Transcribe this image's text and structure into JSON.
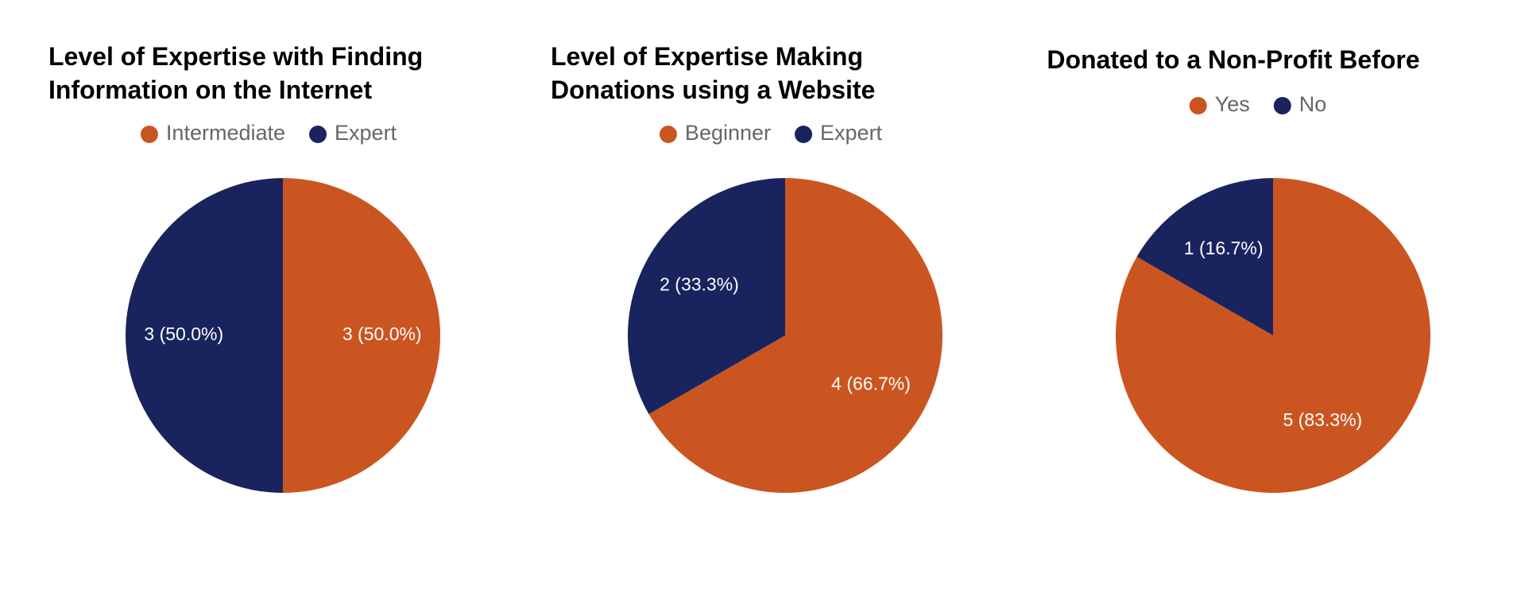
{
  "chart_data": [
    {
      "type": "pie",
      "title": "Level of Expertise with Finding Information on the Internet",
      "categories": [
        "Intermediate",
        "Expert"
      ],
      "values": [
        3,
        3
      ],
      "value_labels": [
        "3 (50.0%)",
        "3 (50.0%)"
      ],
      "colors": [
        "#cb5520",
        "#19245e"
      ],
      "legend": "top"
    },
    {
      "type": "pie",
      "title": "Level of Expertise Making Donations using a Website",
      "categories": [
        "Beginner",
        "Expert"
      ],
      "values": [
        4,
        2
      ],
      "value_labels": [
        "4 (66.7%)",
        "2 (33.3%)"
      ],
      "colors": [
        "#cb5520",
        "#19245e"
      ],
      "legend": "top"
    },
    {
      "type": "pie",
      "title": "Donated to a Non-Profit Before",
      "categories": [
        "Yes",
        "No"
      ],
      "values": [
        5,
        1
      ],
      "value_labels": [
        "5 (83.3%)",
        "1 (16.7%)"
      ],
      "colors": [
        "#cb5520",
        "#19245e"
      ],
      "legend": "top"
    }
  ]
}
